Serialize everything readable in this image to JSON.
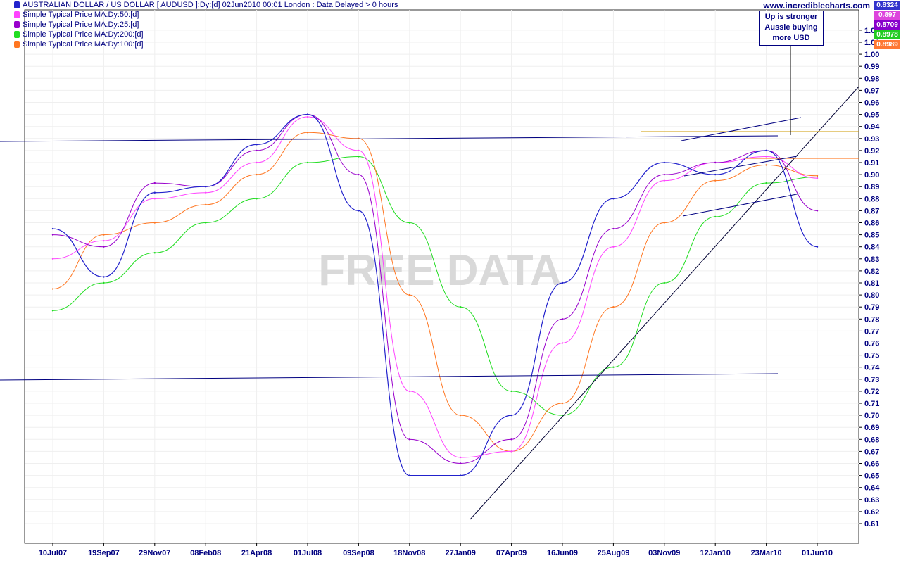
{
  "header": {
    "instrument": "AUSTRALIAN DOLLAR / US DOLLAR [ AUDUSD ]:Dy:[d]  02Jun2010 00:01 London : Data Delayed > 0 hours",
    "site": "www.incrediblecharts.com"
  },
  "legend": [
    {
      "label": "Simple Typical Price MA:Dy:50:[d]",
      "color": "#ff44ff"
    },
    {
      "label": "Simple Typical Price MA:Dy:25:[d]",
      "color": "#9900cc"
    },
    {
      "label": "Simple Typical Price MA:Dy:200:[d]",
      "color": "#22dd22"
    },
    {
      "label": "Simple Typical Price MA:Dy:100:[d]",
      "color": "#ff7722"
    }
  ],
  "annotation": [
    "Up is stronger",
    "Aussie buying",
    "more USD"
  ],
  "watermark": "FREE DATA",
  "value_tags": [
    {
      "text": "0.8324",
      "color": "#3333cc",
      "value": 0.8324
    },
    {
      "text": "0.897",
      "color": "#dd44dd",
      "value": 0.897
    },
    {
      "text": "0.8709",
      "color": "#8800cc",
      "value": 0.8709
    },
    {
      "text": "0.8978",
      "color": "#22cc22",
      "value": 0.8978
    },
    {
      "text": "0.8989",
      "color": "#ff7733",
      "value": 0.8989
    }
  ],
  "chart_data": {
    "type": "line",
    "title": "AUSTRALIAN DOLLAR / US DOLLAR [ AUDUSD ]:Dy:[d]  02Jun2010 00:01 London : Data Delayed > 0 hours",
    "x_tick_labels": [
      "10Jul07",
      "19Sep07",
      "29Nov07",
      "08Feb08",
      "21Apr08",
      "01Jul08",
      "09Sep08",
      "18Nov08",
      "27Jan09",
      "07Apr09",
      "16Jun09",
      "25Aug09",
      "03Nov09",
      "12Jan10",
      "23Mar10",
      "01Jun10"
    ],
    "y_tick_labels": [
      "0.61",
      "0.62",
      "0.63",
      "0.64",
      "0.65",
      "0.66",
      "0.67",
      "0.68",
      "0.69",
      "0.70",
      "0.71",
      "0.72",
      "0.73",
      "0.74",
      "0.75",
      "0.76",
      "0.77",
      "0.78",
      "0.79",
      "0.80",
      "0.81",
      "0.82",
      "0.83",
      "0.84",
      "0.85",
      "0.86",
      "0.87",
      "0.88",
      "0.89",
      "0.90",
      "0.91",
      "0.92",
      "0.93",
      "0.94",
      "0.95",
      "0.96",
      "0.97",
      "0.98",
      "0.99",
      "1.00",
      "1.01",
      "1.02"
    ],
    "ylim": [
      0.6,
      1.03
    ],
    "axis_side": "right",
    "grid": true,
    "legend_position": "top-left",
    "series": [
      {
        "name": "AUSTRALIAN DOLLAR / US DOLLAR",
        "color": "#2222cc",
        "x": [
          "10Jul07",
          "19Sep07",
          "29Nov07",
          "08Feb08",
          "21Apr08",
          "01Jul08",
          "09Sep08",
          "18Nov08",
          "27Jan09",
          "07Apr09",
          "16Jun09",
          "25Aug09",
          "03Nov09",
          "12Jan10",
          "23Mar10",
          "01Jun10"
        ],
        "values": [
          0.855,
          0.815,
          0.885,
          0.89,
          0.925,
          0.95,
          0.87,
          0.65,
          0.65,
          0.7,
          0.81,
          0.88,
          0.91,
          0.9,
          0.92,
          0.84
        ]
      },
      {
        "name": "Simple Typical Price MA:Dy:25:[d]",
        "color": "#9900cc",
        "x": [
          "10Jul07",
          "19Sep07",
          "29Nov07",
          "08Feb08",
          "21Apr08",
          "01Jul08",
          "09Sep08",
          "18Nov08",
          "27Jan09",
          "07Apr09",
          "16Jun09",
          "25Aug09",
          "03Nov09",
          "12Jan10",
          "23Mar10",
          "01Jun10"
        ],
        "values": [
          0.85,
          0.84,
          0.893,
          0.89,
          0.92,
          0.95,
          0.9,
          0.68,
          0.66,
          0.68,
          0.78,
          0.855,
          0.9,
          0.91,
          0.92,
          0.87
        ]
      },
      {
        "name": "Simple Typical Price MA:Dy:50:[d]",
        "color": "#ff44ff",
        "x": [
          "10Jul07",
          "19Sep07",
          "29Nov07",
          "08Feb08",
          "21Apr08",
          "01Jul08",
          "09Sep08",
          "18Nov08",
          "27Jan09",
          "07Apr09",
          "16Jun09",
          "25Aug09",
          "03Nov09",
          "12Jan10",
          "23Mar10",
          "01Jun10"
        ],
        "values": [
          0.83,
          0.845,
          0.88,
          0.885,
          0.91,
          0.948,
          0.92,
          0.72,
          0.665,
          0.67,
          0.76,
          0.84,
          0.895,
          0.91,
          0.915,
          0.897
        ]
      },
      {
        "name": "Simple Typical Price MA:Dy:100:[d]",
        "color": "#ff7722",
        "x": [
          "10Jul07",
          "19Sep07",
          "29Nov07",
          "08Feb08",
          "21Apr08",
          "01Jul08",
          "09Sep08",
          "18Nov08",
          "27Jan09",
          "07Apr09",
          "16Jun09",
          "25Aug09",
          "03Nov09",
          "12Jan10",
          "23Mar10",
          "01Jun10"
        ],
        "values": [
          0.805,
          0.85,
          0.86,
          0.875,
          0.9,
          0.935,
          0.93,
          0.8,
          0.7,
          0.67,
          0.71,
          0.79,
          0.86,
          0.895,
          0.908,
          0.899
        ]
      },
      {
        "name": "Simple Typical Price MA:Dy:200:[d]",
        "color": "#22dd22",
        "x": [
          "10Jul07",
          "19Sep07",
          "29Nov07",
          "08Feb08",
          "21Apr08",
          "01Jul08",
          "09Sep08",
          "18Nov08",
          "27Jan09",
          "07Apr09",
          "16Jun09",
          "25Aug09",
          "03Nov09",
          "12Jan10",
          "23Mar10",
          "01Jun10"
        ],
        "values": [
          0.787,
          0.81,
          0.835,
          0.86,
          0.88,
          0.91,
          0.915,
          0.86,
          0.79,
          0.72,
          0.7,
          0.74,
          0.81,
          0.865,
          0.893,
          0.898
        ]
      }
    ]
  }
}
